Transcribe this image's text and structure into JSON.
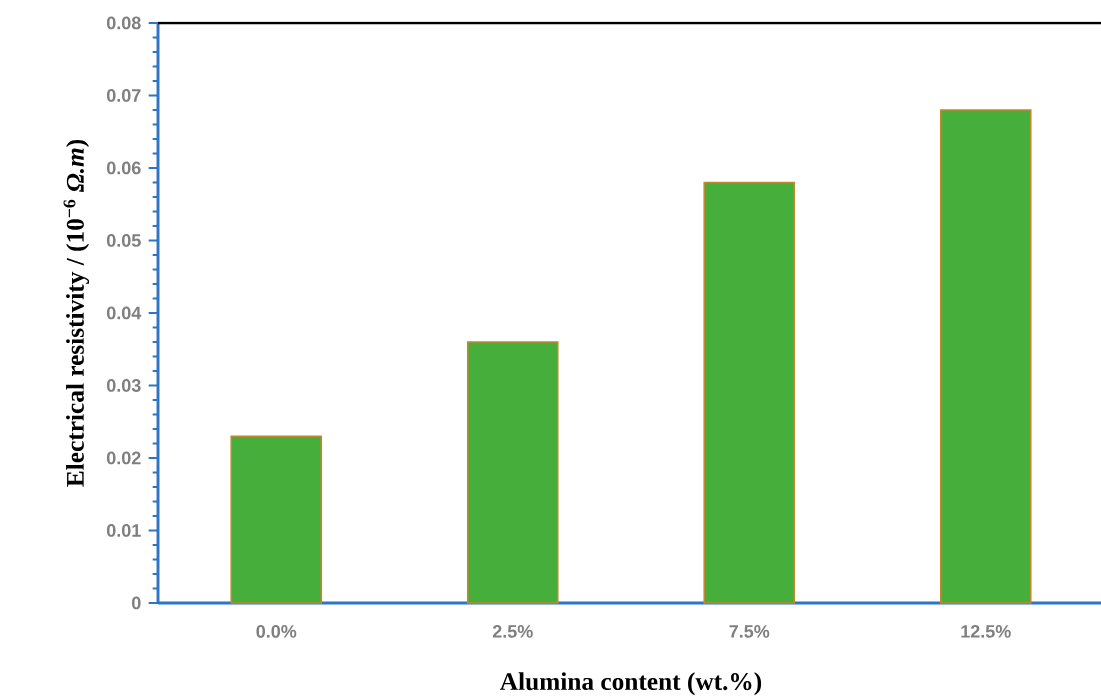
{
  "chart_data": {
    "type": "bar",
    "xlabel": "Alumina content (wt.%)",
    "ylabel": "Electrical resistivity / (10$^{−6}$ *Ω.m*)",
    "categories": [
      "0.0%",
      "2.5%",
      "7.5%",
      "12.5%"
    ],
    "values": [
      0.023,
      0.036,
      0.058,
      0.068
    ],
    "color": "#46ae3b",
    "ylim": [
      0,
      0.08
    ],
    "yticks": [
      0,
      0.01,
      0.02,
      0.03,
      0.04,
      0.05,
      0.06,
      0.07,
      0.08
    ],
    "grid": false
  }
}
